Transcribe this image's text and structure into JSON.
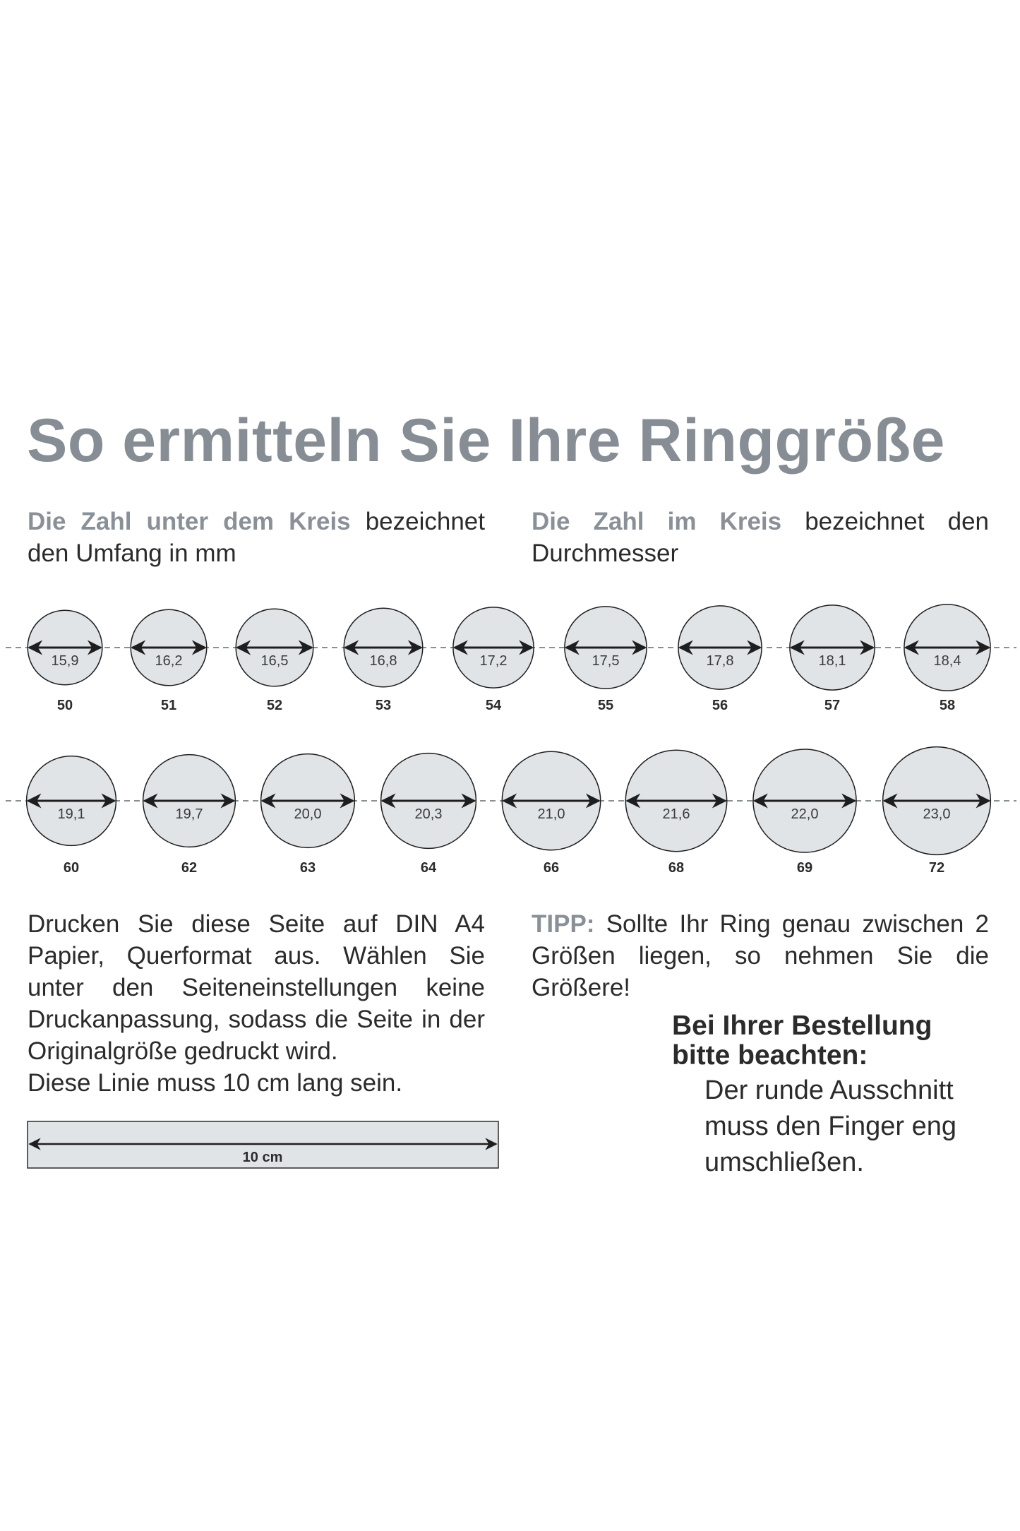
{
  "title": "So ermitteln Sie Ihre Ringgröße",
  "intro_left": {
    "highlight": "Die Zahl unter dem Kreis",
    "text": " bezeichnet den Umfang in mm"
  },
  "intro_right": {
    "highlight": "Die Zahl im Kreis",
    "text": " bezeichnet den Durchmesser"
  },
  "rings_row1": [
    {
      "diameter": "15,9",
      "size": "50"
    },
    {
      "diameter": "16,2",
      "size": "51"
    },
    {
      "diameter": "16,5",
      "size": "52"
    },
    {
      "diameter": "16,8",
      "size": "53"
    },
    {
      "diameter": "17,2",
      "size": "54"
    },
    {
      "diameter": "17,5",
      "size": "55"
    },
    {
      "diameter": "17,8",
      "size": "56"
    },
    {
      "diameter": "18,1",
      "size": "57"
    },
    {
      "diameter": "18,4",
      "size": "58"
    }
  ],
  "rings_row2": [
    {
      "diameter": "19,1",
      "size": "60"
    },
    {
      "diameter": "19,7",
      "size": "62"
    },
    {
      "diameter": "20,0",
      "size": "63"
    },
    {
      "diameter": "20,3",
      "size": "64"
    },
    {
      "diameter": "21,0",
      "size": "66"
    },
    {
      "diameter": "21,6",
      "size": "68"
    },
    {
      "diameter": "22,0",
      "size": "69"
    },
    {
      "diameter": "23,0",
      "size": "72"
    }
  ],
  "print_instructions": "Drucken Sie diese Seite auf DIN A4 Papier, Querformat aus. Wählen Sie unter den Seiteneinstellungen keine Druckanpassung, sodass die Seite in der Originalgröße gedruckt wird.",
  "line_instruction": "Diese Linie muss 10 cm lang sein.",
  "ruler_label": "10 cm",
  "tip": {
    "label": "TIPP:",
    "text": " Sollte Ihr Ring genau zwischen 2 Größen liegen, so nehmen Sie die Größere!"
  },
  "order_note": {
    "heading_line1": "Bei Ihrer Bestellung",
    "heading_line2": "bitte beachten:",
    "body_lines": [
      "Der runde Ausschnitt",
      "muss den Finger eng",
      "umschließen."
    ]
  },
  "colors": {
    "title": "#878d94",
    "circle_fill": "#e1e4e7",
    "text": "#2b2b2b",
    "dashed_line": "#8a8f94"
  }
}
